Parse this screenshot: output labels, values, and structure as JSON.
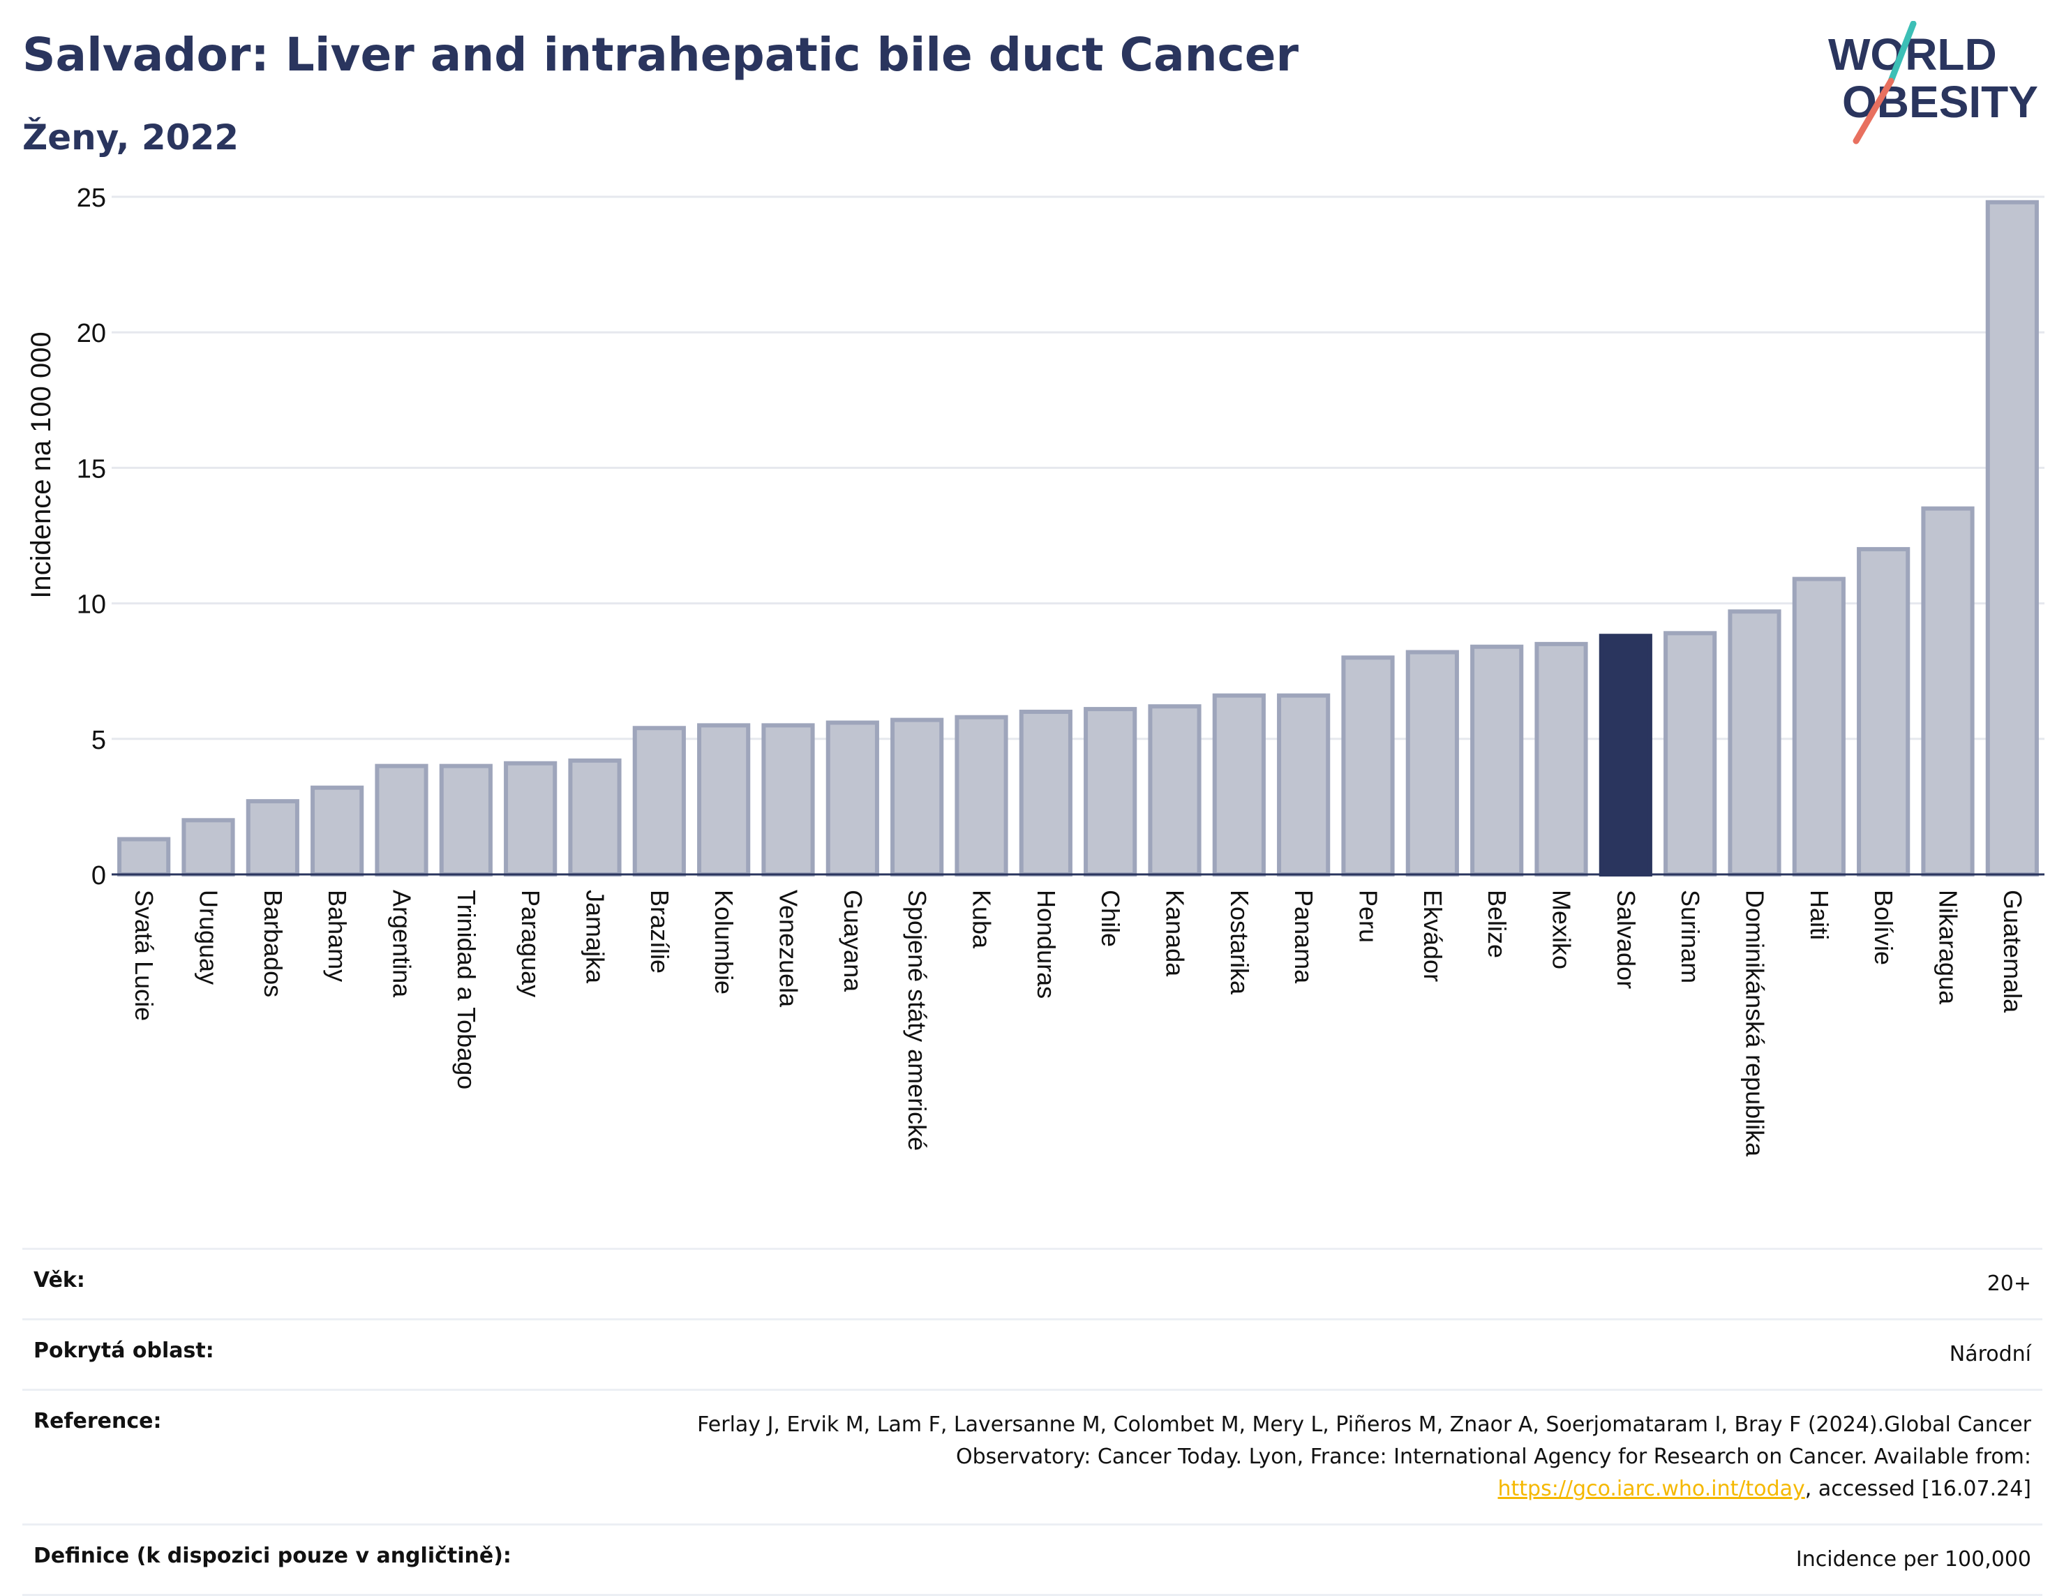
{
  "title": "Salvador: Liver and intrahepatic bile duct Cancer",
  "subtitle": "Ženy, 2022",
  "logo": {
    "line1": "WORLD",
    "line2": "OBESITY",
    "colors": {
      "text": "#2a355e",
      "slash_top": "#3cbfb6",
      "slash_bottom": "#e8705f"
    }
  },
  "colors": {
    "bar": "#c0c4d0",
    "bar_border": "#9ea5bb",
    "highlight": "#2a355e",
    "grid": "#e6e8ee",
    "axis": "#2a355e"
  },
  "chart_data": {
    "type": "bar",
    "title": "",
    "xlabel": "",
    "ylabel": "Incidence na 100 000",
    "ylim": [
      0,
      25
    ],
    "yticks": [
      0,
      5,
      10,
      15,
      20,
      25
    ],
    "grid": true,
    "highlight": "Salvador",
    "categories": [
      "Svatá Lucie",
      "Uruguay",
      "Barbados",
      "Bahamy",
      "Argentina",
      "Trinidad a Tobago",
      "Paraguay",
      "Jamajka",
      "Brazílie",
      "Kolumbie",
      "Venezuela",
      "Guayana",
      "Spojené státy americké",
      "Kuba",
      "Honduras",
      "Chile",
      "Kanada",
      "Kostarika",
      "Panama",
      "Peru",
      "Ekvádor",
      "Belize",
      "Mexiko",
      "Salvador",
      "Surinam",
      "Dominikánská republika",
      "Haiti",
      "Bolívie",
      "Nikaragua",
      "Guatemala"
    ],
    "values": [
      1.3,
      2.0,
      2.7,
      3.2,
      4.0,
      4.0,
      4.1,
      4.2,
      5.4,
      5.5,
      5.5,
      5.6,
      5.7,
      5.8,
      6.0,
      6.1,
      6.2,
      6.6,
      6.6,
      8.0,
      8.2,
      8.4,
      8.5,
      8.8,
      8.9,
      9.7,
      10.9,
      12.0,
      13.5,
      24.8
    ]
  },
  "info": [
    {
      "label": "Věk:",
      "value": "20+"
    },
    {
      "label": "Pokrytá oblast:",
      "value": "Národní"
    },
    {
      "label": "Reference:",
      "value_pre": "Ferlay J, Ervik M, Lam F, Laversanne M, Colombet M, Mery L, Piñeros M, Znaor A, Soerjomataram I, Bray F (2024).Global Cancer Observatory: Cancer Today. Lyon, France: International Agency for Research on Cancer. Available from: ",
      "link": "https://gco.iarc.who.int/today",
      "value_post": ", accessed [16.07.24]"
    },
    {
      "label": "Definice (k dispozici pouze v angličtině):",
      "value": "Incidence per 100,000"
    }
  ]
}
